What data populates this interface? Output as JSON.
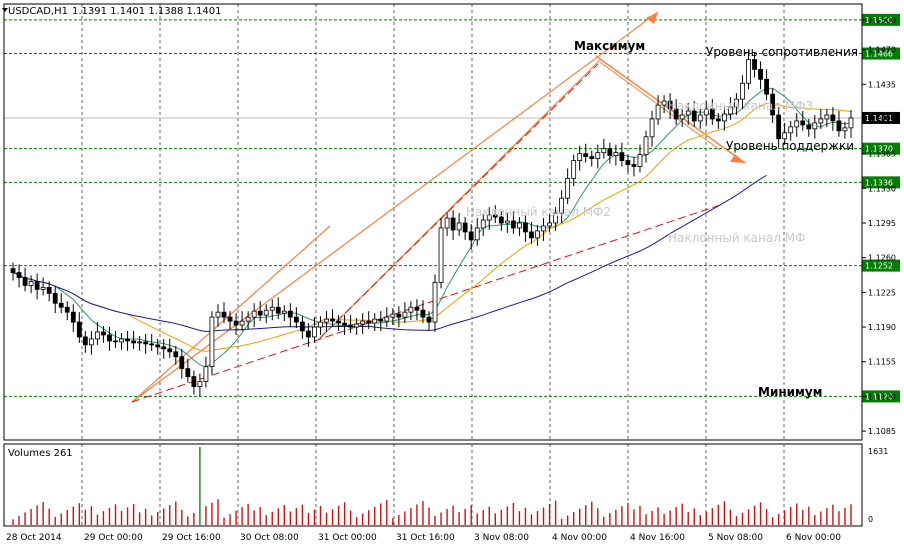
{
  "header": {
    "symbol": "USDCAD,H1",
    "ohlc": "1.1391 1.1401 1.1388 1.1401"
  },
  "volumes_label": "Volumes 261",
  "annotations": {
    "maximum": "Максимум",
    "minimum": "Минимум",
    "resistance": "Уровень сопротивления",
    "support": "Уровень поддержки",
    "channel_mf3": "Наклонный канал МФ3",
    "channel_mf2": "Наклонный канал МФ2",
    "channel_mf": "Наклонный канал МФ"
  },
  "colors": {
    "candle": "#000000",
    "level_line": "#008000",
    "level_label_bg": "#008000",
    "channel_orange": "#ff7f3f",
    "channel_red_dashed": "#d8171a",
    "ma_fast": "#2e9a5f",
    "ma_mid": "#f0a000",
    "ma_slow": "#1c1c8c",
    "volume_bar": "#cc1111",
    "volume_spike": "#118811"
  },
  "chart_data": {
    "type": "candlestick",
    "title": "USDCAD,H1",
    "y_ticks": [
      "1.1500",
      "1.1470",
      "1.1435",
      "1.1401",
      "1.1365",
      "1.1330",
      "1.1295",
      "1.1260",
      "1.1225",
      "1.1190",
      "1.1155",
      "1.1120",
      "1.1085"
    ],
    "ylim": [
      1.1076,
      1.1516
    ],
    "horizontal_levels": [
      {
        "value": "1.1500",
        "label": "1.1500"
      },
      {
        "value": "1.1466",
        "label": "1.1466"
      },
      {
        "value": "1.1370",
        "label": "1.1370"
      },
      {
        "value": "1.1336",
        "label": "1.1336"
      },
      {
        "value": "1.1252",
        "label": "1.1252"
      },
      {
        "value": "1.1120",
        "label": "1.1120"
      }
    ],
    "current_price": "1.1401",
    "x_tick_labels": [
      "28 Oct 2014",
      "29 Oct 00:00",
      "29 Oct 16:00",
      "30 Oct 08:00",
      "31 Oct 00:00",
      "31 Oct 16:00",
      "3 Nov 08:00",
      "4 Nov 00:00",
      "4 Nov 16:00",
      "5 Nov 08:00",
      "6 Nov 00:00"
    ],
    "volume_axis_labels": [
      "1631",
      "0"
    ],
    "volume_max": 1631,
    "candles_close": [
      1.1245,
      1.124,
      1.1232,
      1.1236,
      1.1228,
      1.123,
      1.1224,
      1.1214,
      1.121,
      1.1205,
      1.1195,
      1.118,
      1.1172,
      1.1178,
      1.1185,
      1.1182,
      1.1176,
      1.1175,
      1.1178,
      1.1176,
      1.1174,
      1.1175,
      1.1173,
      1.1172,
      1.117,
      1.1168,
      1.1165,
      1.116,
      1.1148,
      1.114,
      1.113,
      1.1135,
      1.115,
      1.12,
      1.1205,
      1.12,
      1.1196,
      1.1192,
      1.1196,
      1.12,
      1.1206,
      1.1202,
      1.1207,
      1.121,
      1.1204,
      1.1206,
      1.12,
      1.1195,
      1.1186,
      1.118,
      1.119,
      1.1195,
      1.1198,
      1.1196,
      1.1194,
      1.1192,
      1.119,
      1.1193,
      1.1196,
      1.1194,
      1.1198,
      1.1196,
      1.12,
      1.1203,
      1.12,
      1.1205,
      1.121,
      1.1207,
      1.12,
      1.1195,
      1.1235,
      1.129,
      1.13,
      1.1288,
      1.1295,
      1.1286,
      1.1278,
      1.129,
      1.1298,
      1.1303,
      1.1301,
      1.1295,
      1.1297,
      1.129,
      1.1295,
      1.1286,
      1.128,
      1.1287,
      1.1292,
      1.1295,
      1.1305,
      1.132,
      1.134,
      1.1358,
      1.1365,
      1.1362,
      1.136,
      1.1366,
      1.137,
      1.1363,
      1.1366,
      1.1358,
      1.1354,
      1.1352,
      1.1364,
      1.1382,
      1.14,
      1.1414,
      1.1418,
      1.141,
      1.14,
      1.1404,
      1.1408,
      1.1398,
      1.1404,
      1.141,
      1.14,
      1.1398,
      1.1405,
      1.1412,
      1.142,
      1.1436,
      1.146,
      1.145,
      1.144,
      1.1425,
      1.1404,
      1.138,
      1.1386,
      1.1392,
      1.1398,
      1.1394,
      1.139,
      1.1396,
      1.14,
      1.1404,
      1.1398,
      1.1388,
      1.1391,
      1.1401
    ],
    "series": [
      {
        "name": "",
        "role": "ma_fast"
      },
      {
        "name": "",
        "role": "ma_mid"
      },
      {
        "name": "",
        "role": "ma_slow"
      }
    ]
  }
}
